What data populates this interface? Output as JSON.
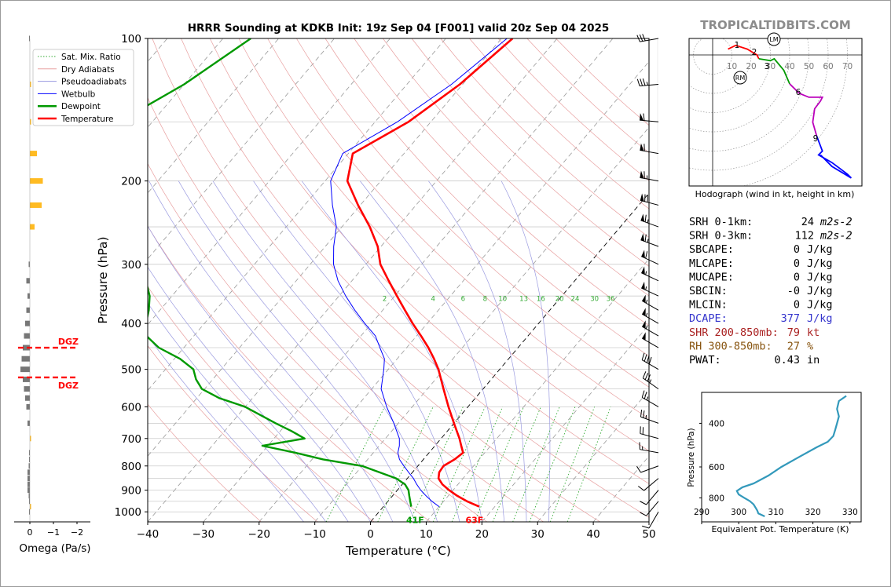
{
  "title": "HRRR Sounding at KDKB Init: 19z Sep 04 [F001] valid 20z Sep 04 2025",
  "brand": "TROPICALTIDBITS.COM",
  "colors": {
    "temperature": "#ff0000",
    "dewpoint": "#009900",
    "wetbulb": "#0000ff",
    "dry_adiabat": "#e8a0a0",
    "pseudo_adiabat": "#9a9ae0",
    "mixing_ratio": "#33aa33",
    "isotherm": "#999999",
    "isobar": "#cccccc",
    "omega_positive": "#ffbb22",
    "omega_negative": "#777777",
    "theta_e": "#3399bb",
    "dgz": "#ff0000"
  },
  "chart_data": [
    {
      "id": "skewt",
      "type": "line",
      "xlabel": "Temperature (°C)",
      "ylabel": "Pressure (hPa)",
      "xlim": [
        -40,
        50
      ],
      "ylim": [
        1050,
        100
      ],
      "yscale": "log",
      "skew": true,
      "grid": true,
      "xticks": [
        -40,
        -30,
        -20,
        -10,
        0,
        10,
        20,
        30,
        40,
        50
      ],
      "xtick_labels": [
        "−40",
        "−30",
        "−20",
        "−10",
        "0",
        "10",
        "20",
        "30",
        "40",
        "50"
      ],
      "yticks": [
        100,
        200,
        300,
        400,
        500,
        600,
        700,
        800,
        900,
        1000
      ],
      "legend": {
        "placement": "top-left",
        "entries": [
          "Sat. Mix. Ratio",
          "Dry Adiabats",
          "Pseudoadiabats",
          "Wetbulb",
          "Dewpoint",
          "Temperature"
        ]
      },
      "mixing_ratio_labels": [
        "2",
        "4",
        "6",
        "8",
        "10",
        "13",
        "16",
        "20",
        "24",
        "30",
        "36"
      ],
      "mixing_ratio_values": [
        2,
        4,
        6,
        8,
        10,
        13,
        16,
        20,
        24,
        30,
        36
      ],
      "surface_labels": {
        "temperature": "63F",
        "dewpoint": "41F"
      },
      "series": [
        {
          "name": "Temperature",
          "pressure": [
            975,
            950,
            925,
            900,
            875,
            850,
            825,
            800,
            775,
            750,
            725,
            700,
            650,
            600,
            550,
            500,
            475,
            450,
            425,
            400,
            375,
            350,
            325,
            300,
            275,
            250,
            225,
            200,
            175,
            150,
            125,
            100
          ],
          "temp": [
            17.2,
            14.2,
            11.6,
            9.3,
            7.2,
            5.6,
            4.8,
            4.6,
            5.6,
            6.1,
            4.7,
            3.3,
            0.0,
            -3.5,
            -7.1,
            -11.0,
            -13.4,
            -16.1,
            -19.2,
            -22.6,
            -26.0,
            -29.6,
            -33.4,
            -37.4,
            -40.6,
            -45.0,
            -50.4,
            -56.0,
            -59.2,
            -54.0,
            -50.5,
            -48.0
          ]
        },
        {
          "name": "Dewpoint",
          "pressure": [
            975,
            950,
            925,
            900,
            875,
            850,
            800,
            775,
            750,
            725,
            700,
            675,
            650,
            600,
            575,
            550,
            525,
            500,
            475,
            450,
            425,
            400,
            375,
            350,
            325,
            300,
            275,
            250,
            225,
            200,
            175,
            150,
            125,
            100
          ],
          "temp": [
            5.0,
            4.0,
            3.0,
            2.0,
            0.5,
            -2.0,
            -10.0,
            -18.0,
            -24.0,
            -31.0,
            -24.5,
            -28.0,
            -32.0,
            -40.0,
            -46.0,
            -50.5,
            -53.0,
            -55.0,
            -59.0,
            -64.5,
            -68.5,
            -70.5,
            -72.0,
            -74.0,
            -77.0,
            -80.0,
            -82.0,
            -86.0,
            -90.0,
            -94.0,
            -99.5,
            -106.0,
            -100.0,
            -95.0
          ]
        },
        {
          "name": "Wetbulb",
          "pressure": [
            975,
            950,
            925,
            900,
            875,
            850,
            825,
            800,
            775,
            750,
            725,
            700,
            650,
            600,
            550,
            500,
            475,
            450,
            425,
            400,
            375,
            350,
            325,
            300,
            275,
            250,
            225,
            200,
            175,
            150,
            125,
            100
          ],
          "temp": [
            10.0,
            7.9,
            6.0,
            4.2,
            2.6,
            1.1,
            -0.7,
            -2.5,
            -4.3,
            -5.6,
            -6.4,
            -7.5,
            -10.8,
            -14.6,
            -18.3,
            -20.8,
            -22.3,
            -24.8,
            -27.4,
            -31.2,
            -35.0,
            -38.8,
            -42.5,
            -45.8,
            -48.5,
            -51.0,
            -55.0,
            -59.0,
            -61.0,
            -56.0,
            -52.0,
            -49.0
          ]
        }
      ]
    },
    {
      "id": "hodograph",
      "type": "line",
      "xlabel": "Hodograph (wind in kt, height in km)",
      "ring_labels": [
        "10",
        "20",
        "30",
        "40",
        "50",
        "60",
        "70"
      ],
      "ring_values": [
        10,
        20,
        30,
        40,
        50,
        60,
        70
      ],
      "markers": [
        "LM",
        "RM"
      ],
      "height_labels": [
        "1",
        "2",
        "3",
        "6",
        "9"
      ],
      "segments": [
        {
          "color": "#ff0000",
          "u": [
            8,
            12,
            18,
            23,
            24
          ],
          "v": [
            3,
            5,
            3,
            0,
            -2
          ]
        },
        {
          "color": "#009900",
          "u": [
            24,
            30,
            32,
            37,
            40
          ],
          "v": [
            -2,
            -3,
            -2,
            -8,
            -15
          ]
        },
        {
          "color": "#bb00bb",
          "u": [
            40,
            45,
            50,
            57,
            56,
            53,
            52,
            54
          ],
          "v": [
            -15,
            -20,
            -22,
            -22,
            -24,
            -28,
            -35,
            -42
          ]
        },
        {
          "color": "#0000ff",
          "u": [
            54,
            57,
            55,
            62,
            70,
            72,
            62,
            56
          ],
          "v": [
            -42,
            -50,
            -52,
            -56,
            -62,
            -64,
            -58,
            -52
          ]
        }
      ]
    },
    {
      "id": "omega",
      "type": "bar",
      "xlabel": "Omega (Pa/s)",
      "xticks": [
        0,
        -1,
        -2
      ],
      "xtick_labels": [
        "0",
        "−1",
        "−2"
      ],
      "dgz_label": "DGZ",
      "dgz_pressures": [
        450,
        520
      ],
      "pressure": [
        100,
        125,
        150,
        175,
        200,
        225,
        250,
        300,
        325,
        350,
        375,
        400,
        425,
        450,
        475,
        500,
        525,
        550,
        575,
        600,
        650,
        700,
        750,
        775,
        800,
        825,
        850,
        875,
        900,
        925,
        950,
        975,
        1000
      ],
      "values": [
        0.0,
        0.05,
        0.05,
        0.3,
        0.55,
        0.5,
        0.2,
        -0.05,
        -0.15,
        -0.1,
        -0.15,
        -0.2,
        -0.25,
        -0.3,
        -0.35,
        -0.4,
        -0.3,
        -0.25,
        -0.2,
        -0.15,
        -0.1,
        0.05,
        0.0,
        0.0,
        -0.05,
        -0.1,
        -0.1,
        -0.1,
        -0.1,
        -0.05,
        0.0,
        0.05,
        0.0
      ]
    },
    {
      "id": "theta_e",
      "type": "line",
      "xlabel": "Equivalent Pot. Temperature (K)",
      "ylabel": "Pressure (hPa)",
      "xlim": [
        290,
        333
      ],
      "ylim": [
        1000,
        300
      ],
      "xticks": [
        290,
        300,
        310,
        320,
        330
      ],
      "yticks": [
        400,
        600,
        800
      ],
      "pressure": [
        950,
        925,
        900,
        875,
        850,
        825,
        800,
        775,
        750,
        725,
        700,
        650,
        600,
        550,
        500,
        475,
        450,
        425,
        400,
        375,
        350,
        325,
        310
      ],
      "values": [
        307.0,
        305.3,
        305.0,
        304.5,
        304.0,
        303.0,
        301.5,
        300.0,
        299.5,
        301.0,
        304.0,
        308.0,
        311.5,
        316.0,
        321.0,
        324.0,
        325.5,
        326.0,
        326.5,
        327.0,
        326.5,
        327.0,
        329.0
      ]
    }
  ],
  "indices": [
    {
      "label": "SRH 0-1km:",
      "value": "24",
      "unit": "m2s-2",
      "color": "#000000"
    },
    {
      "label": "SRH 0-3km:",
      "value": "112",
      "unit": "m2s-2",
      "color": "#000000"
    },
    {
      "label": "SBCAPE:",
      "value": "0",
      "unit": "J/kg",
      "color": "#000000"
    },
    {
      "label": "MLCAPE:",
      "value": "0",
      "unit": "J/kg",
      "color": "#000000"
    },
    {
      "label": "MUCAPE:",
      "value": "0",
      "unit": "J/kg",
      "color": "#000000"
    },
    {
      "label": "SBCIN:",
      "value": "-0",
      "unit": "J/kg",
      "color": "#000000"
    },
    {
      "label": "MLCIN:",
      "value": "0",
      "unit": "J/kg",
      "color": "#000000"
    },
    {
      "label": "DCAPE:",
      "value": "377",
      "unit": "J/kg",
      "color": "#3333cc"
    },
    {
      "label": "SHR 200-850mb:",
      "value": "79",
      "unit": "kt",
      "color": "#aa2222"
    },
    {
      "label": "RH 300-850mb:",
      "value": "27",
      "unit": "%",
      "color": "#885511"
    },
    {
      "label": "PWAT:",
      "value": "0.43",
      "unit": "in",
      "color": "#000000"
    }
  ],
  "wind_barbs": [
    {
      "p": 100,
      "spd": 30,
      "dir": 260
    },
    {
      "p": 125,
      "spd": 35,
      "dir": 265
    },
    {
      "p": 150,
      "spd": 60,
      "dir": 275
    },
    {
      "p": 175,
      "spd": 60,
      "dir": 280
    },
    {
      "p": 200,
      "spd": 65,
      "dir": 280
    },
    {
      "p": 225,
      "spd": 70,
      "dir": 285
    },
    {
      "p": 250,
      "spd": 65,
      "dir": 290
    },
    {
      "p": 275,
      "spd": 65,
      "dir": 290
    },
    {
      "p": 300,
      "spd": 60,
      "dir": 295
    },
    {
      "p": 325,
      "spd": 55,
      "dir": 295
    },
    {
      "p": 350,
      "spd": 55,
      "dir": 295
    },
    {
      "p": 375,
      "spd": 55,
      "dir": 300
    },
    {
      "p": 400,
      "spd": 55,
      "dir": 300
    },
    {
      "p": 425,
      "spd": 55,
      "dir": 300
    },
    {
      "p": 450,
      "spd": 50,
      "dir": 300
    },
    {
      "p": 500,
      "spd": 40,
      "dir": 300
    },
    {
      "p": 550,
      "spd": 35,
      "dir": 305
    },
    {
      "p": 600,
      "spd": 25,
      "dir": 300
    },
    {
      "p": 650,
      "spd": 25,
      "dir": 290
    },
    {
      "p": 700,
      "spd": 20,
      "dir": 285
    },
    {
      "p": 750,
      "spd": 15,
      "dir": 280
    },
    {
      "p": 800,
      "spd": 10,
      "dir": 250
    },
    {
      "p": 850,
      "spd": 10,
      "dir": 230
    },
    {
      "p": 900,
      "spd": 10,
      "dir": 220
    },
    {
      "p": 950,
      "spd": 10,
      "dir": 220
    },
    {
      "p": 1000,
      "spd": 10,
      "dir": 210
    }
  ]
}
